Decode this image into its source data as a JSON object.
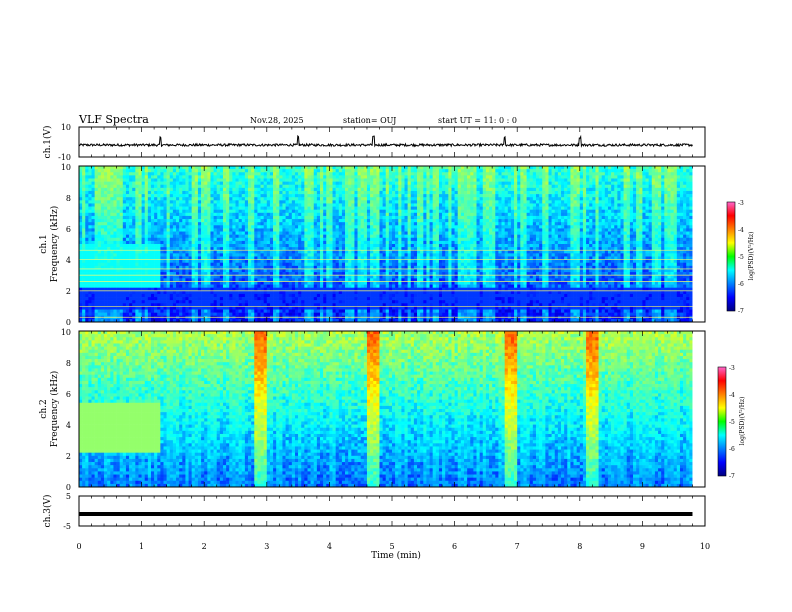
{
  "header": {
    "title": "VLF Spectra",
    "date": "Nov.28, 2025",
    "station": "station= OUJ",
    "start": "start UT = 11: 0 : 0"
  },
  "chart_data": [
    {
      "type": "line",
      "id": "ch1-waveform",
      "ylabel": "ch.1(V)",
      "ylim": [
        -10,
        10
      ],
      "y_ticks": [
        "10",
        "-10"
      ],
      "xlim": [
        0,
        10
      ],
      "baseline": -2,
      "spike_times": [
        1.3,
        3.5,
        4.7,
        6.8,
        8.0
      ]
    },
    {
      "type": "heatmap",
      "id": "ch1-spectrogram",
      "ylabel": "Frequency (kHz)",
      "channel_label": "ch.1",
      "ylim": [
        0,
        10
      ],
      "y_ticks": [
        "0",
        "2",
        "4",
        "6",
        "8",
        "10"
      ],
      "xlim": [
        0,
        10
      ],
      "colorbar": {
        "label": "log(PSD)(V²/Hz)",
        "range": [
          -7,
          -3
        ],
        "ticks": [
          "-3",
          "-4",
          "-5",
          "-6",
          "-7"
        ]
      },
      "bands_khz": [
        0.3,
        1.0,
        2.0,
        2.6,
        3.0,
        3.4,
        4.0,
        4.6
      ],
      "low_activity_band": [
        0.8,
        2.2
      ],
      "strong_segment": {
        "t_end": 1.3,
        "f_low": 2.2,
        "f_high": 5.0
      },
      "intensity_gradient": "high frequencies brighter"
    },
    {
      "type": "heatmap",
      "id": "ch2-spectrogram",
      "ylabel": "Frequency (kHz)",
      "channel_label": "ch.2",
      "ylim": [
        0,
        10
      ],
      "y_ticks": [
        "0",
        "2",
        "4",
        "6",
        "8",
        "10"
      ],
      "xlim": [
        0,
        10
      ],
      "colorbar": {
        "label": "log(PSD)(V²/Hz)",
        "range": [
          -7,
          -3
        ],
        "ticks": [
          "-3",
          "-4",
          "-5",
          "-6",
          "-7"
        ]
      },
      "strong_segment": {
        "t_end": 1.3,
        "f_low": 2.2,
        "f_high": 5.5
      },
      "burst_times": [
        2.9,
        4.7,
        6.9,
        8.2
      ],
      "intensity_gradient": "high frequencies brighter"
    },
    {
      "type": "line",
      "id": "ch3-waveform",
      "ylabel": "ch.3(V)",
      "ylim": [
        -5,
        5
      ],
      "y_ticks": [
        "5",
        "-5"
      ],
      "xlim": [
        0,
        10
      ],
      "x_ticks": [
        "0",
        "1",
        "2",
        "3",
        "4",
        "5",
        "6",
        "7",
        "8",
        "9",
        "10"
      ],
      "xlabel": "Time (min)",
      "baseline": -1,
      "t_end": 9.8
    }
  ],
  "colors": {
    "axis": "#000000",
    "background": "#ffffff",
    "no_data": "#ffffff"
  }
}
